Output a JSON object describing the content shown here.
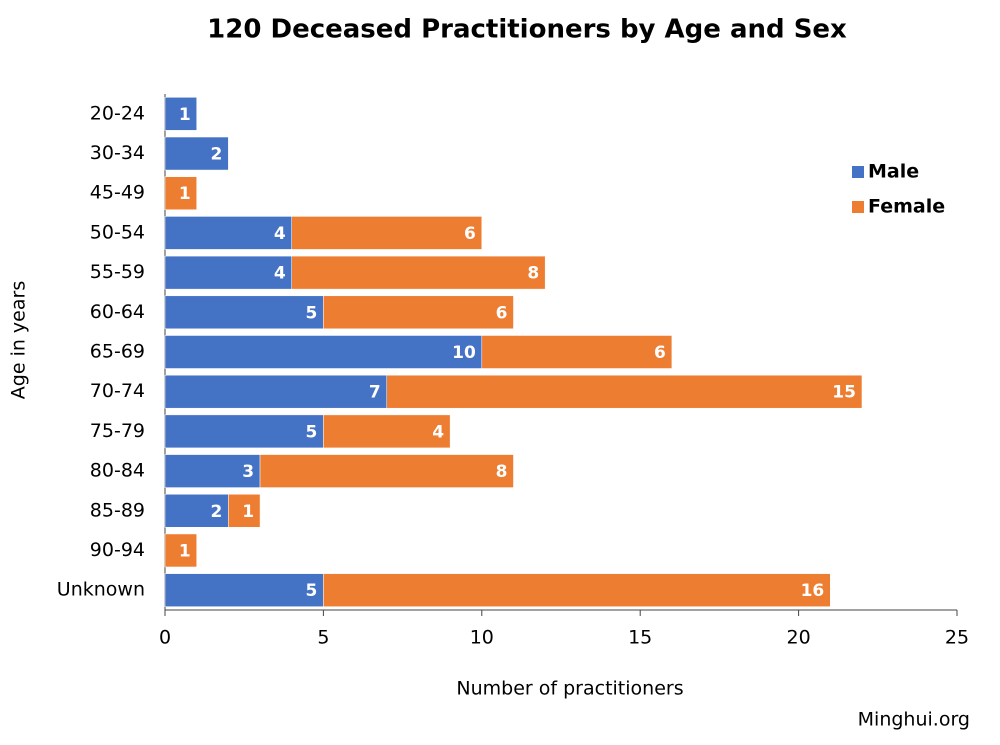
{
  "chart_data": {
    "type": "bar",
    "orientation": "horizontal",
    "stacked": true,
    "title": "120 Deceased Practitioners by Age and Sex",
    "xlabel": "Number of practitioners",
    "ylabel": "Age in years",
    "categories": [
      "20-24",
      "30-34",
      "45-49",
      "50-54",
      "55-59",
      "60-64",
      "65-69",
      "70-74",
      "75-79",
      "80-84",
      "85-89",
      "90-94",
      "Unknown"
    ],
    "series": [
      {
        "name": "Male",
        "color": "#4472c4",
        "values": [
          1,
          2,
          null,
          4,
          4,
          5,
          10,
          7,
          5,
          3,
          2,
          null,
          5
        ]
      },
      {
        "name": "Female",
        "color": "#ed7d31",
        "values": [
          null,
          null,
          1,
          6,
          8,
          6,
          6,
          15,
          4,
          8,
          1,
          1,
          16
        ]
      }
    ],
    "xlim": [
      0,
      25
    ],
    "xticks": [
      0,
      5,
      10,
      15,
      20,
      25
    ],
    "legend": "right",
    "source": "Minghui.org"
  }
}
